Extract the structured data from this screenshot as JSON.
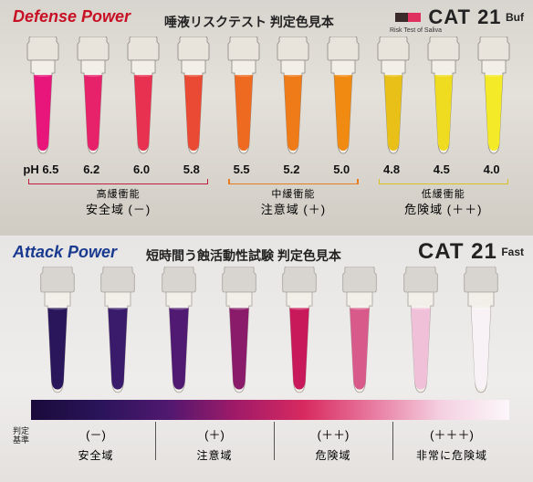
{
  "panel1": {
    "title": "Defense Power",
    "title_color": "#c81024",
    "subtitle": "唾液リスクテスト 判定色見本",
    "product": {
      "name": "CAT 21",
      "sub": "Buf",
      "tag": "Risk Test of Saliva",
      "swatches": [
        "#3a2a2a",
        "#e03060"
      ]
    },
    "bg_top": "#d8d5cf",
    "tubes": [
      {
        "ph": "pH 6.5",
        "color": "#e8157a"
      },
      {
        "ph": "6.2",
        "color": "#e8226a"
      },
      {
        "ph": "6.0",
        "color": "#e83050"
      },
      {
        "ph": "5.8",
        "color": "#ea4a34"
      },
      {
        "ph": "5.5",
        "color": "#ee6a20"
      },
      {
        "ph": "5.2",
        "color": "#ef7a18"
      },
      {
        "ph": "5.0",
        "color": "#f08a10"
      },
      {
        "ph": "4.8",
        "color": "#e8c018"
      },
      {
        "ph": "4.5",
        "color": "#efdc20"
      },
      {
        "ph": "4.0",
        "color": "#f4ea28"
      }
    ],
    "cap_color": "#e8e4dc",
    "tube_stroke": "#8a8680",
    "zones": [
      {
        "top": "高緩衝能",
        "bot": "安全域 (－)",
        "color": "#c02040",
        "span": [
          0,
          3
        ]
      },
      {
        "top": "中緩衝能",
        "bot": "注意域 (＋)",
        "color": "#e87a20",
        "span": [
          4,
          6
        ]
      },
      {
        "top": "低緩衝能",
        "bot": "危険域 (＋＋)",
        "color": "#d8c020",
        "span": [
          7,
          9
        ]
      }
    ]
  },
  "panel2": {
    "title": "Attack Power",
    "title_color": "#1a3a90",
    "subtitle": "短時間う蝕活動性試験 判定色見本",
    "product": {
      "name": "CAT 21",
      "sub": "Fast"
    },
    "tubes": [
      {
        "color": "#2a165a"
      },
      {
        "color": "#3a1a6a"
      },
      {
        "color": "#501a72"
      },
      {
        "color": "#8a1a6a"
      },
      {
        "color": "#c81a5a"
      },
      {
        "color": "#d85a8a"
      },
      {
        "color": "#f0c0d8"
      },
      {
        "color": "#f8f2f6"
      }
    ],
    "cap_color": "#d8d4d0",
    "tube_stroke": "#aaa6a0",
    "gradient": [
      "#1a0a3a",
      "#2a145a",
      "#501870",
      "#a01a68",
      "#d82a60",
      "#e87aa0",
      "#f4d0e0",
      "#fcf6fa"
    ],
    "criteria_label": "判定\n基準",
    "parens": [
      "(－)",
      "(＋)",
      "(＋＋)",
      "(＋＋＋)"
    ],
    "zone_labels": [
      "安全域",
      "注意域",
      "危険域",
      "非常に危険域"
    ]
  }
}
